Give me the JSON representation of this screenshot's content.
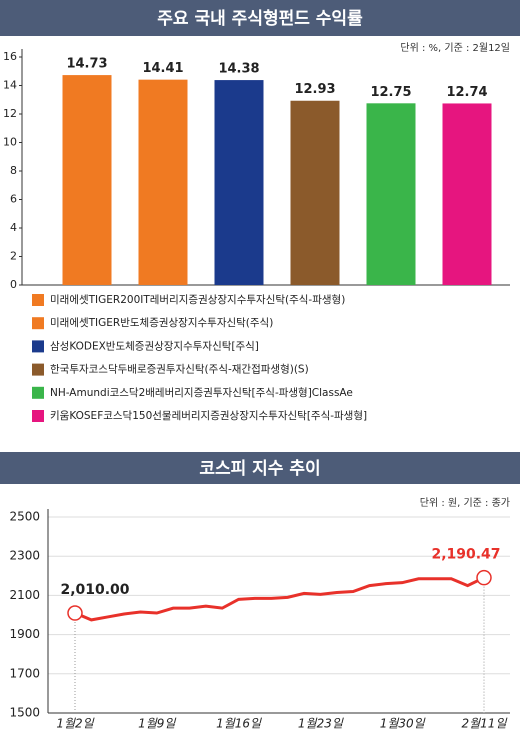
{
  "chart_data": [
    {
      "type": "bar",
      "title": "주요 국내 주식형펀드 수익률",
      "note": "단위 : %, 기준 : 2월12일",
      "categories": [
        "미래에셋TIGER200IT레버리지증권상장지수투자신탁(주식-파생형)",
        "미래에셋TIGER반도체증권상장지수투자신탁(주식)",
        "삼성KODEX반도체증권상장지수투자신탁[주식]",
        "한국투자코스닥두배로증권투자신탁(주식-재간접파생형)(S)",
        "NH-Amundi코스닥2배레버리지증권투자신탁[주식-파생형]ClassAe",
        "키움KOSEF코스닥150선물레버리지증권상장지수투자신탁[주식-파생형]"
      ],
      "values": [
        14.73,
        14.41,
        14.38,
        12.93,
        12.75,
        12.74
      ],
      "colors": [
        "#f07a22",
        "#f07a22",
        "#1b3a8c",
        "#8b5a2b",
        "#3ab54a",
        "#e6157f"
      ],
      "ylim": [
        0,
        16
      ],
      "yticks": [
        0,
        2,
        4,
        6,
        8,
        10,
        12,
        14,
        16
      ]
    },
    {
      "type": "line",
      "title": "코스피 지수 추이",
      "note": "단위 : 원, 기준 : 종가",
      "categories": [
        "1월2일",
        null,
        null,
        null,
        null,
        "1월9일",
        null,
        null,
        null,
        null,
        "1월16일",
        null,
        null,
        null,
        null,
        "1월23일",
        null,
        null,
        null,
        null,
        "1월30일",
        null,
        null,
        null,
        null,
        "2월11일"
      ],
      "values": [
        2010.0,
        1975,
        1990,
        2005,
        2015,
        2010,
        2035,
        2035,
        2045,
        2035,
        2080,
        2085,
        2085,
        2090,
        2110,
        2105,
        2115,
        2120,
        2150,
        2160,
        2165,
        2185,
        2185,
        2185,
        2150,
        2190.47
      ],
      "value_labels": [
        "2,010.00",
        null,
        null,
        null,
        null,
        null,
        null,
        null,
        null,
        null,
        null,
        null,
        null,
        null,
        null,
        null,
        null,
        null,
        null,
        null,
        null,
        null,
        null,
        null,
        null,
        "2,190.47"
      ],
      "color": "#e8312a",
      "ylim": [
        1500,
        2500
      ],
      "yticks": [
        1500,
        1700,
        1900,
        2100,
        2300,
        2500
      ],
      "grid": true
    }
  ]
}
